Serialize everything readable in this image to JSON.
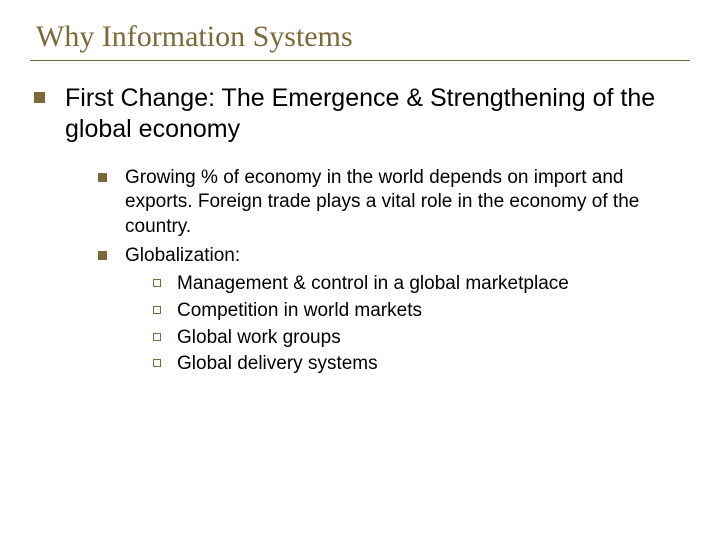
{
  "colors": {
    "accent": "#7a6a3a",
    "text": "#000000",
    "background": "#ffffff"
  },
  "typography": {
    "title_family": "Times New Roman",
    "title_size_pt": 30,
    "body_family": "Arial",
    "lvl1_size_pt": 25,
    "lvl2_size_pt": 19,
    "lvl3_size_pt": 19
  },
  "title": "Why Information Systems",
  "lvl1": "First Change: The Emergence & Strengthening of the global economy",
  "lvl2": {
    "item1": "Growing % of economy in the world depends on import and exports. Foreign trade plays a vital role in the economy of the country.",
    "item2": "Globalization:"
  },
  "lvl3": {
    "a": "Management & control in a global marketplace",
    "b": "Competition in world markets",
    "c": "Global work groups",
    "d": "Global delivery systems"
  }
}
